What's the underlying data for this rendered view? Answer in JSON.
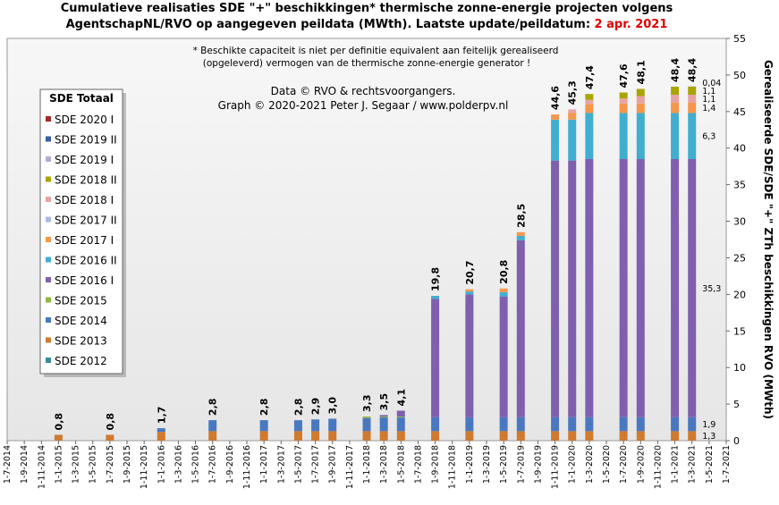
{
  "chart_data": {
    "type": "stacked_bar",
    "title": "Cumulatieve realisaties SDE \"+\" beschikkingen*  thermische zonne-energie projecten volgens",
    "subtitle": "AgentschapNL/RVO  op aangegeven peildata (MWth).  Laatste update/peildatum: ",
    "date": "2 apr. 2021",
    "date_color": "#e00000",
    "note": [
      "* Beschikte capaciteit is niet per definitie equivalent aan feitelijk gerealiseerd",
      "(opgeleverd) vermogen van de thermische zonne-energie generator !"
    ],
    "credits": [
      "Data © RVO & rechtsvoorgangers.",
      "Graph  © 2020-2021  Peter J. Segaar / www.polderpv.nl"
    ],
    "y_label": "Gerealiseerde SDE/SDE \"+\" ZTh beschikkingen RVO (MWth)",
    "legend_title": "SDE Totaal",
    "ylim": [
      0,
      55
    ],
    "yticks": [
      0,
      5,
      10,
      15,
      20,
      25,
      30,
      35,
      40,
      45,
      50,
      55
    ],
    "categories": [
      "1-7-2014",
      "1-9-2014",
      "1-11-2014",
      "1-1-2015",
      "1-3-2015",
      "1-5-2015",
      "1-7-2015",
      "1-9-2015",
      "1-11-2015",
      "1-1-2016",
      "1-3-2016",
      "1-5-2016",
      "1-7-2016",
      "1-9-2016",
      "1-11-2016",
      "1-1-2017",
      "1-3-2017",
      "1-5-2017",
      "1-7-2017",
      "1-9-2017",
      "1-11-2017",
      "1-1-2018",
      "1-3-2018",
      "1-5-2018",
      "1-7-2018",
      "1-9-2018",
      "1-11-2018",
      "1-1-2019",
      "1-3-2019",
      "1-5-2019",
      "1-7-2019",
      "1-9-2019",
      "1-11-2019",
      "1-1-2020",
      "1-3-2020",
      "1-5-2020",
      "1-7-2020",
      "1-9-2020",
      "1-11-2020",
      "1-1-2021",
      "1-3-2021",
      "1-5-2021",
      "1-7-2021"
    ],
    "series": [
      {
        "name": "SDE 2012",
        "color": "#3a8a9a",
        "values": [
          null,
          null,
          null,
          null,
          null,
          null,
          null,
          null,
          null,
          null,
          null,
          null,
          null,
          null,
          null,
          null,
          null,
          null,
          null,
          null,
          null,
          null,
          null,
          null,
          null,
          null,
          null,
          null,
          null,
          null,
          null,
          null,
          null,
          null,
          null,
          null,
          null,
          null,
          null,
          null,
          null,
          null,
          null
        ]
      },
      {
        "name": "SDE 2013",
        "color": "#d07a30",
        "values": [
          null,
          null,
          null,
          0.8,
          null,
          null,
          0.8,
          null,
          null,
          1.2,
          null,
          null,
          1.3,
          null,
          null,
          1.3,
          null,
          1.3,
          1.3,
          1.3,
          null,
          1.3,
          1.3,
          1.3,
          null,
          1.3,
          null,
          1.3,
          null,
          1.3,
          1.3,
          null,
          1.3,
          1.3,
          1.3,
          null,
          1.3,
          1.3,
          null,
          1.3,
          1.3,
          null,
          null
        ],
        "value_labels": [
          null,
          null,
          null,
          null,
          null,
          null,
          null,
          null,
          null,
          null,
          null,
          null,
          null,
          null,
          null,
          null,
          null,
          null,
          null,
          null,
          null,
          null,
          null,
          null,
          null,
          null,
          null,
          null,
          null,
          null,
          null,
          null,
          null,
          null,
          null,
          null,
          null,
          null,
          null,
          null,
          "1,3",
          null,
          null
        ]
      },
      {
        "name": "SDE 2014",
        "color": "#4a78c0",
        "values": [
          null,
          null,
          null,
          null,
          null,
          null,
          null,
          null,
          null,
          0.5,
          null,
          null,
          1.5,
          null,
          null,
          1.5,
          null,
          1.5,
          1.6,
          1.7,
          null,
          1.8,
          1.9,
          1.9,
          null,
          1.9,
          null,
          1.9,
          null,
          1.9,
          1.9,
          null,
          1.9,
          1.9,
          1.9,
          null,
          1.9,
          1.9,
          null,
          1.9,
          1.9,
          null,
          null
        ],
        "value_labels": [
          null,
          null,
          null,
          null,
          null,
          null,
          null,
          null,
          null,
          null,
          null,
          null,
          null,
          null,
          null,
          null,
          null,
          null,
          null,
          null,
          null,
          null,
          null,
          null,
          null,
          null,
          null,
          null,
          null,
          null,
          null,
          null,
          null,
          null,
          null,
          null,
          null,
          null,
          null,
          null,
          "1,9",
          null,
          null
        ]
      },
      {
        "name": "SDE 2015",
        "color": "#90b840",
        "values": [
          null,
          null,
          null,
          null,
          null,
          null,
          null,
          null,
          null,
          null,
          null,
          null,
          null,
          null,
          null,
          null,
          null,
          null,
          null,
          null,
          null,
          0.2,
          0.1,
          0.1,
          null,
          null,
          null,
          null,
          null,
          null,
          null,
          null,
          null,
          null,
          null,
          null,
          null,
          null,
          null,
          null,
          null,
          null,
          null
        ]
      },
      {
        "name": "SDE 2016 I",
        "color": "#7f5fae",
        "text_color": "#e00000",
        "values": [
          null,
          null,
          null,
          null,
          null,
          null,
          null,
          null,
          null,
          null,
          null,
          null,
          null,
          null,
          null,
          null,
          null,
          null,
          null,
          null,
          null,
          null,
          0.2,
          0.8,
          null,
          16.2,
          null,
          16.8,
          null,
          16.5,
          24.2,
          null,
          35.1,
          35.1,
          35.3,
          null,
          35.3,
          35.3,
          null,
          35.3,
          35.3,
          null,
          null
        ],
        "value_labels": [
          null,
          null,
          null,
          null,
          null,
          null,
          null,
          null,
          null,
          null,
          null,
          null,
          null,
          null,
          null,
          null,
          null,
          null,
          null,
          null,
          null,
          null,
          null,
          null,
          null,
          null,
          null,
          null,
          null,
          null,
          null,
          null,
          null,
          null,
          null,
          null,
          null,
          null,
          null,
          null,
          "35,3",
          null,
          null
        ]
      },
      {
        "name": "SDE 2016 II",
        "color": "#42aecf",
        "values": [
          null,
          null,
          null,
          null,
          null,
          null,
          null,
          null,
          null,
          null,
          null,
          null,
          null,
          null,
          null,
          null,
          null,
          null,
          null,
          null,
          null,
          null,
          null,
          null,
          null,
          0.4,
          null,
          0.4,
          null,
          0.6,
          0.6,
          null,
          5.6,
          5.6,
          6.3,
          null,
          6.3,
          6.3,
          null,
          6.3,
          6.3,
          null,
          null
        ],
        "value_labels": [
          null,
          null,
          null,
          null,
          null,
          null,
          null,
          null,
          null,
          null,
          null,
          null,
          null,
          null,
          null,
          null,
          null,
          null,
          null,
          null,
          null,
          null,
          null,
          null,
          null,
          null,
          null,
          null,
          null,
          null,
          null,
          null,
          null,
          null,
          null,
          null,
          null,
          null,
          null,
          null,
          "6,3",
          null,
          null
        ]
      },
      {
        "name": "SDE 2017 I",
        "color": "#f5974a",
        "values": [
          null,
          null,
          null,
          null,
          null,
          null,
          null,
          null,
          null,
          null,
          null,
          null,
          null,
          null,
          null,
          null,
          null,
          null,
          null,
          null,
          null,
          null,
          null,
          null,
          null,
          null,
          null,
          0.3,
          null,
          0.5,
          0.5,
          null,
          0.7,
          0.9,
          1.2,
          null,
          1.3,
          1.3,
          null,
          1.4,
          1.4,
          null,
          null
        ],
        "value_labels": [
          null,
          null,
          null,
          null,
          null,
          null,
          null,
          null,
          null,
          null,
          null,
          null,
          null,
          null,
          null,
          null,
          null,
          null,
          null,
          null,
          null,
          null,
          null,
          null,
          null,
          null,
          null,
          null,
          null,
          null,
          null,
          null,
          null,
          null,
          null,
          null,
          null,
          null,
          null,
          null,
          "1,4",
          null,
          null
        ]
      },
      {
        "name": "SDE 2017 II",
        "color": "#a9bbe3",
        "values": [
          null,
          null,
          null,
          null,
          null,
          null,
          null,
          null,
          null,
          null,
          null,
          null,
          null,
          null,
          null,
          null,
          null,
          null,
          null,
          null,
          null,
          null,
          null,
          null,
          null,
          null,
          null,
          null,
          null,
          null,
          null,
          null,
          null,
          null,
          null,
          null,
          null,
          null,
          null,
          null,
          null,
          null,
          null
        ]
      },
      {
        "name": "SDE 2018 I",
        "color": "#e9a2a2",
        "values": [
          null,
          null,
          null,
          null,
          null,
          null,
          null,
          null,
          null,
          null,
          null,
          null,
          null,
          null,
          null,
          null,
          null,
          null,
          null,
          null,
          null,
          null,
          null,
          null,
          null,
          null,
          null,
          null,
          null,
          null,
          null,
          null,
          null,
          0.5,
          0.6,
          null,
          0.7,
          1.0,
          null,
          1.1,
          1.1,
          null,
          null
        ],
        "value_labels": [
          null,
          null,
          null,
          null,
          null,
          null,
          null,
          null,
          null,
          null,
          null,
          null,
          null,
          null,
          null,
          null,
          null,
          null,
          null,
          null,
          null,
          null,
          null,
          null,
          null,
          null,
          null,
          null,
          null,
          null,
          null,
          null,
          null,
          null,
          null,
          null,
          null,
          null,
          null,
          null,
          "1,1",
          null,
          null
        ]
      },
      {
        "name": "SDE 2018 II",
        "color": "#a9a500",
        "values": [
          null,
          null,
          null,
          null,
          null,
          null,
          null,
          null,
          null,
          null,
          null,
          null,
          null,
          null,
          null,
          null,
          null,
          null,
          null,
          null,
          null,
          null,
          null,
          null,
          null,
          null,
          null,
          null,
          null,
          null,
          null,
          null,
          null,
          null,
          0.8,
          null,
          0.8,
          1.0,
          null,
          1.1,
          1.1,
          null,
          null
        ],
        "value_labels": [
          null,
          null,
          null,
          null,
          null,
          null,
          null,
          null,
          null,
          null,
          null,
          null,
          null,
          null,
          null,
          null,
          null,
          null,
          null,
          null,
          null,
          null,
          null,
          null,
          null,
          null,
          null,
          null,
          null,
          null,
          null,
          null,
          null,
          null,
          null,
          null,
          null,
          null,
          null,
          null,
          "1,1",
          null,
          null
        ]
      },
      {
        "name": "SDE 2019 I",
        "color": "#b9a9d2",
        "values": [
          null,
          null,
          null,
          null,
          null,
          null,
          null,
          null,
          null,
          null,
          null,
          null,
          null,
          null,
          null,
          null,
          null,
          null,
          null,
          null,
          null,
          null,
          null,
          null,
          null,
          null,
          null,
          null,
          null,
          null,
          null,
          null,
          null,
          null,
          null,
          null,
          null,
          null,
          null,
          null,
          0.04,
          null,
          null
        ],
        "value_labels": [
          null,
          null,
          null,
          null,
          null,
          null,
          null,
          null,
          null,
          null,
          null,
          null,
          null,
          null,
          null,
          null,
          null,
          null,
          null,
          null,
          null,
          null,
          null,
          null,
          null,
          null,
          null,
          null,
          null,
          null,
          null,
          null,
          null,
          null,
          null,
          null,
          null,
          null,
          null,
          null,
          "0,04",
          null,
          null
        ]
      },
      {
        "name": "SDE 2019 II",
        "color": "#3a5fa0",
        "values": [
          null,
          null,
          null,
          null,
          null,
          null,
          null,
          null,
          null,
          null,
          null,
          null,
          null,
          null,
          null,
          null,
          null,
          null,
          null,
          null,
          null,
          null,
          null,
          null,
          null,
          null,
          null,
          null,
          null,
          null,
          null,
          null,
          null,
          null,
          null,
          null,
          null,
          null,
          null,
          null,
          null,
          null,
          null
        ]
      },
      {
        "name": "SDE 2020 I",
        "color": "#a52a2a",
        "values": [
          null,
          null,
          null,
          null,
          null,
          null,
          null,
          null,
          null,
          null,
          null,
          null,
          null,
          null,
          null,
          null,
          null,
          null,
          null,
          null,
          null,
          null,
          null,
          null,
          null,
          null,
          null,
          null,
          null,
          null,
          null,
          null,
          null,
          null,
          null,
          null,
          null,
          null,
          null,
          null,
          null,
          null,
          null
        ]
      }
    ],
    "totals": {
      "values": [
        null,
        null,
        null,
        0.8,
        null,
        null,
        0.8,
        null,
        null,
        1.7,
        null,
        null,
        2.8,
        null,
        null,
        2.8,
        null,
        2.8,
        2.9,
        3.0,
        null,
        3.3,
        3.5,
        4.1,
        null,
        19.8,
        null,
        20.7,
        null,
        20.8,
        28.5,
        null,
        44.6,
        45.3,
        47.4,
        null,
        47.6,
        48.1,
        null,
        48.4,
        48.4,
        null,
        null
      ],
      "value_labels": [
        null,
        null,
        null,
        "0,8",
        null,
        null,
        "0,8",
        null,
        null,
        "1,7",
        null,
        null,
        "2,8",
        null,
        null,
        "2,8",
        null,
        "2,8",
        "2,9",
        "3,0",
        null,
        "3,3",
        "3,5",
        "4,1",
        null,
        "19,8",
        null,
        "20,7",
        null,
        "20,8",
        "28,5",
        null,
        "44,6",
        "45,3",
        "47,4",
        null,
        "47,6",
        "48,1",
        null,
        "48,4",
        "48,4",
        null,
        null
      ]
    }
  }
}
